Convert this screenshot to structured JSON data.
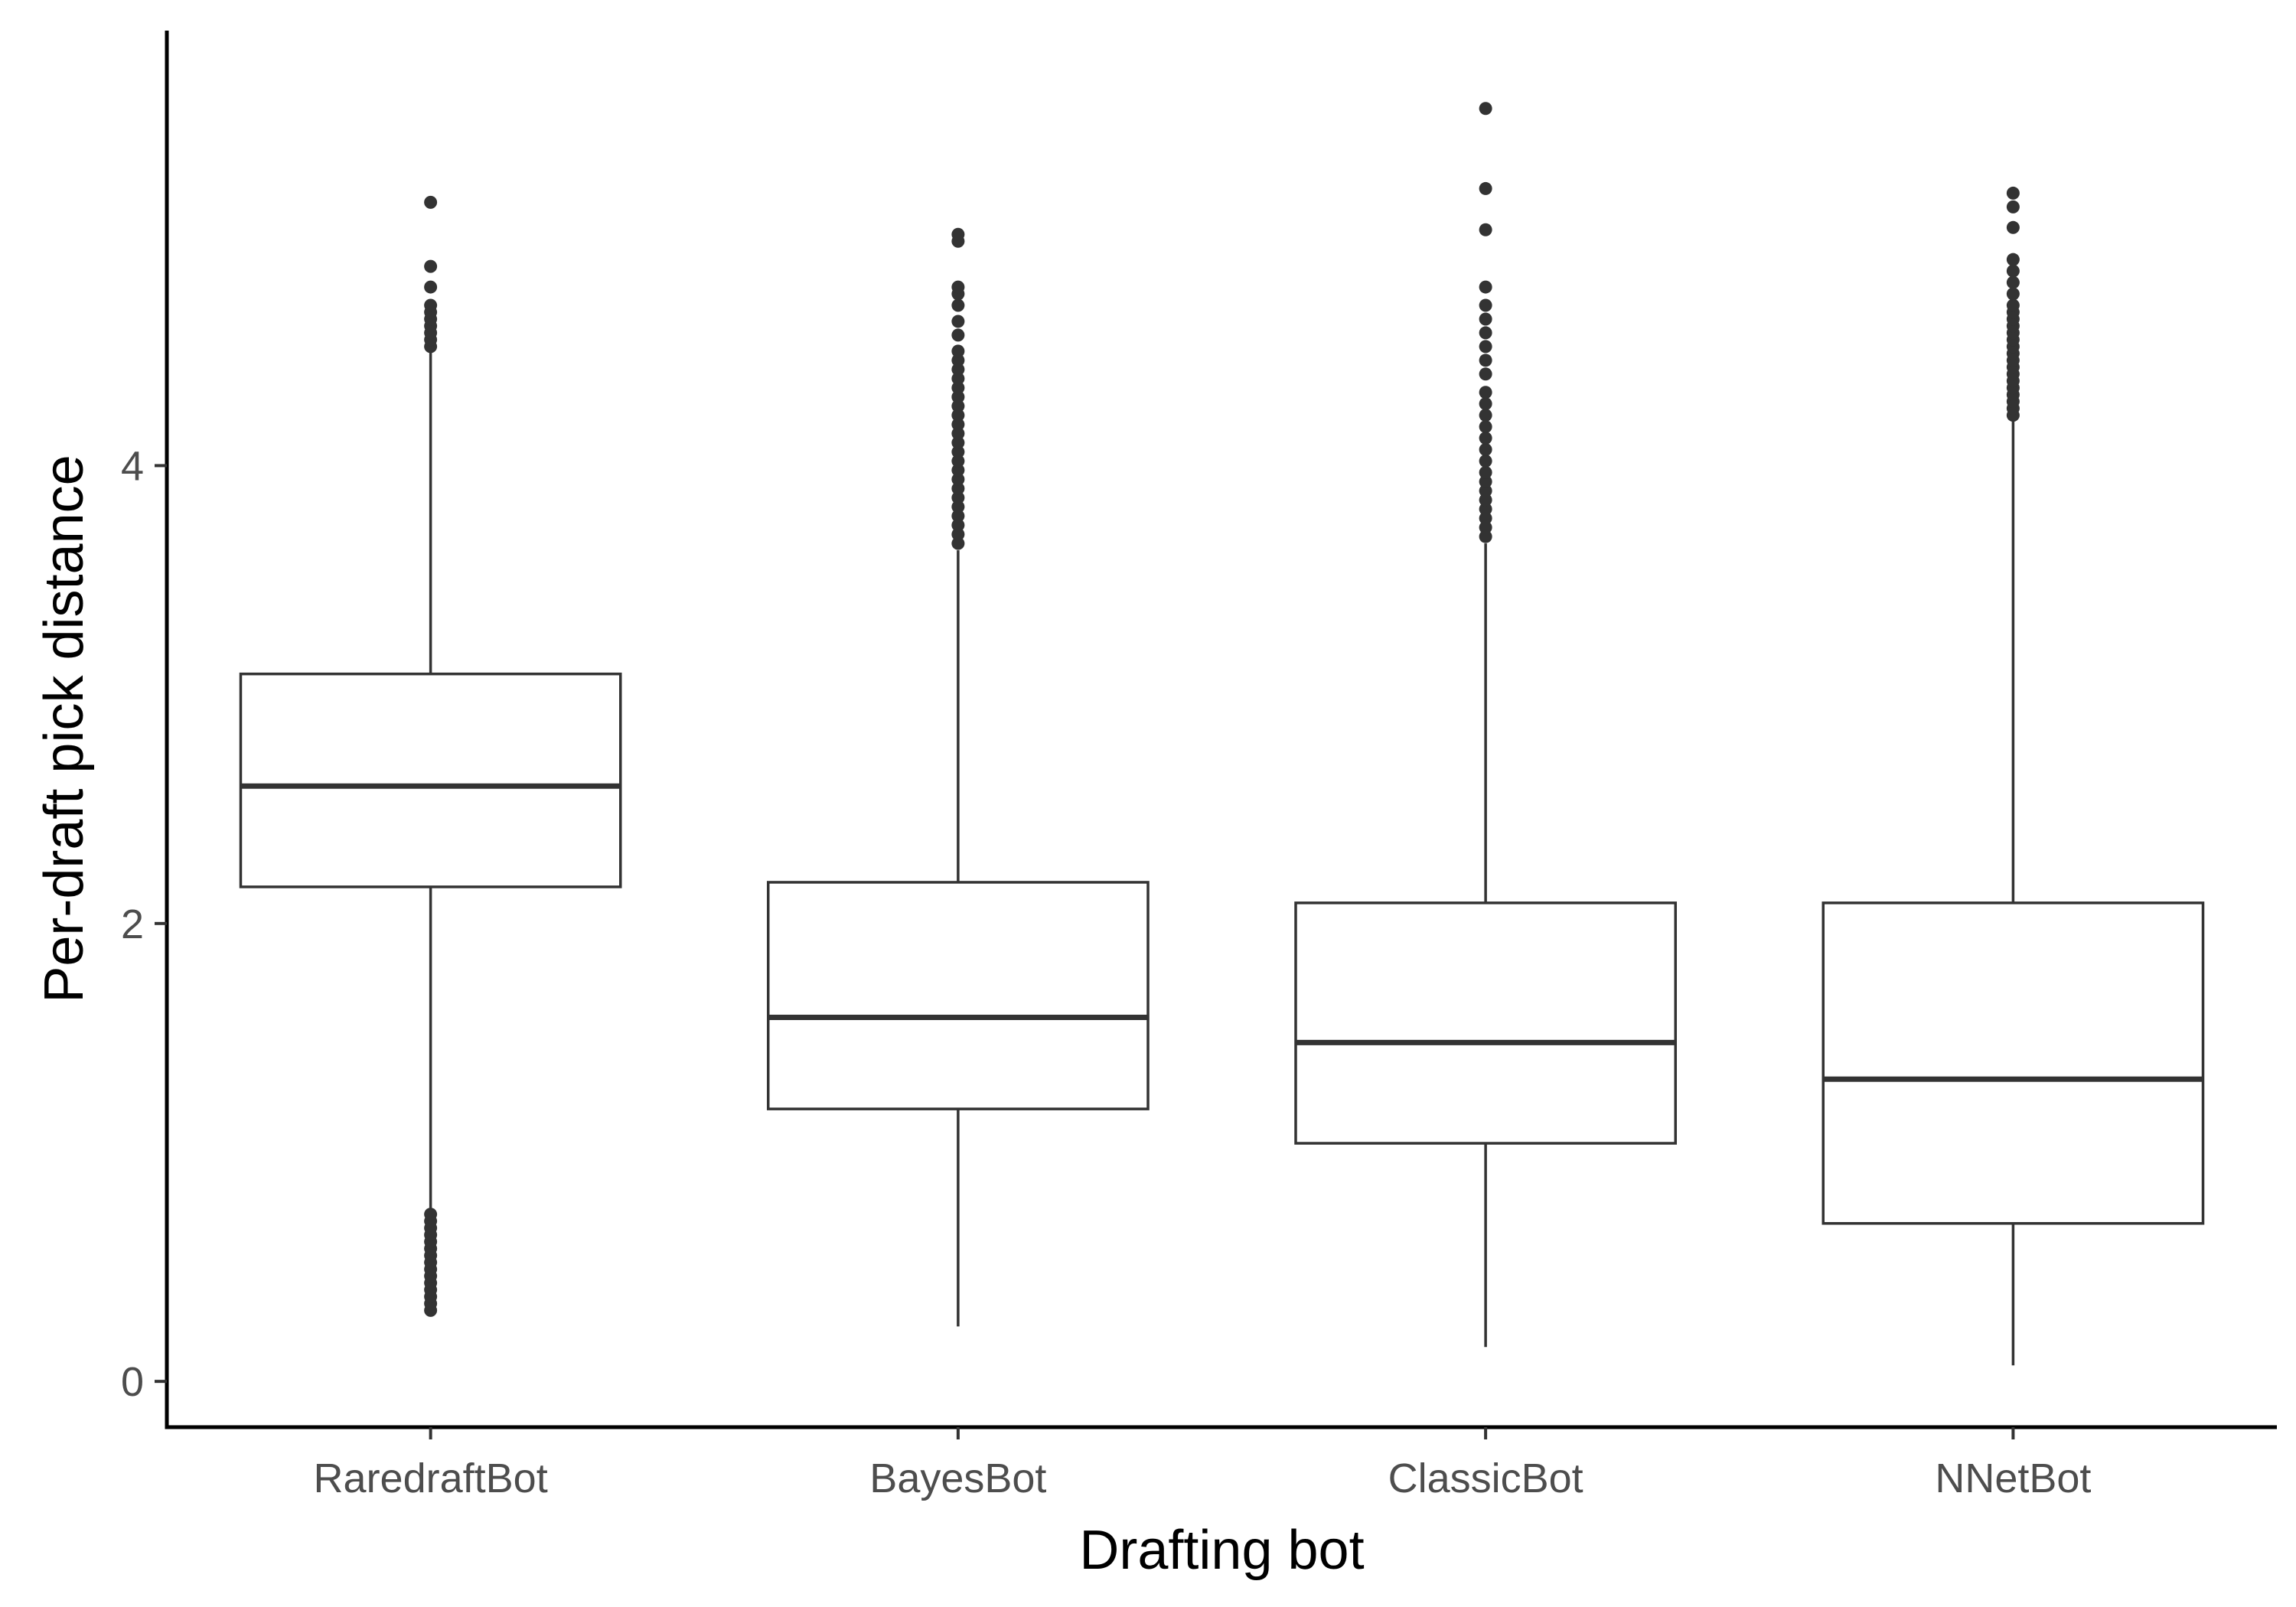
{
  "chart_data": {
    "type": "boxplot",
    "title": "",
    "xlabel": "Drafting bot",
    "ylabel": "Per-draft pick distance",
    "ylim": [
      -0.2,
      5.9
    ],
    "yticks": [
      0,
      2,
      4
    ],
    "ytick_labels": [
      "0",
      "2",
      "4"
    ],
    "grid": false,
    "categories": [
      "RaredraftBot",
      "BayesBot",
      "ClassicBot",
      "NNetBot"
    ],
    "boxes": [
      {
        "category": "RaredraftBot",
        "q1": 2.16,
        "median": 2.6,
        "q3": 3.09,
        "whisker_low": 0.75,
        "whisker_high": 4.5,
        "outliers": [
          0.31,
          0.34,
          0.37,
          0.4,
          0.43,
          0.46,
          0.49,
          0.52,
          0.55,
          0.58,
          0.61,
          0.64,
          0.67,
          0.7,
          0.73,
          4.52,
          4.55,
          4.58,
          4.61,
          4.64,
          4.67,
          4.7,
          4.78,
          4.87,
          5.15
        ]
      },
      {
        "category": "BayesBot",
        "q1": 1.19,
        "median": 1.59,
        "q3": 2.18,
        "whisker_low": 0.24,
        "whisker_high": 3.63,
        "outliers": [
          3.66,
          3.7,
          3.74,
          3.78,
          3.82,
          3.86,
          3.9,
          3.94,
          3.98,
          4.02,
          4.06,
          4.1,
          4.14,
          4.18,
          4.22,
          4.26,
          4.3,
          4.34,
          4.38,
          4.42,
          4.46,
          4.5,
          4.57,
          4.63,
          4.7,
          4.75,
          4.78,
          4.98,
          5.01
        ]
      },
      {
        "category": "ClassicBot",
        "q1": 1.04,
        "median": 1.48,
        "q3": 2.09,
        "whisker_low": 0.15,
        "whisker_high": 3.66,
        "outliers": [
          3.69,
          3.73,
          3.77,
          3.81,
          3.85,
          3.89,
          3.93,
          3.97,
          4.02,
          4.07,
          4.12,
          4.17,
          4.22,
          4.27,
          4.32,
          4.4,
          4.46,
          4.52,
          4.58,
          4.64,
          4.7,
          4.78,
          5.03,
          5.21,
          5.56
        ]
      },
      {
        "category": "NNetBot",
        "q1": 0.69,
        "median": 1.32,
        "q3": 2.09,
        "whisker_low": 0.07,
        "whisker_high": 4.2,
        "outliers": [
          4.22,
          4.25,
          4.28,
          4.31,
          4.34,
          4.37,
          4.4,
          4.43,
          4.46,
          4.49,
          4.52,
          4.55,
          4.58,
          4.61,
          4.64,
          4.67,
          4.7,
          4.75,
          4.8,
          4.85,
          4.9,
          5.04,
          5.13,
          5.19
        ]
      }
    ]
  }
}
